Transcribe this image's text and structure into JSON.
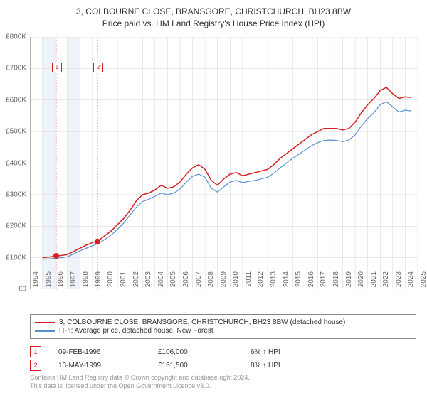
{
  "title_line1": "3, COLBOURNE CLOSE, BRANSGORE, CHRISTCHURCH, BH23 8BW",
  "title_line2": "Price paid vs. HM Land Registry's House Price Index (HPI)",
  "chart": {
    "type": "line",
    "background_color": "#ffffff",
    "grid_color": "#d5d5d5",
    "axis_color": "#666666",
    "ylim": [
      0,
      800000
    ],
    "ytick_step": 100000,
    "ytick_labels": [
      "£0",
      "£100K",
      "£200K",
      "£300K",
      "£400K",
      "£500K",
      "£600K",
      "£700K",
      "£800K"
    ],
    "xlim": [
      1994,
      2025
    ],
    "xtick_step": 1,
    "xtick_labels": [
      "1994",
      "1995",
      "1996",
      "1997",
      "1998",
      "1999",
      "2000",
      "2001",
      "2002",
      "2003",
      "2004",
      "2005",
      "2006",
      "2007",
      "2008",
      "2009",
      "2010",
      "2011",
      "2012",
      "2013",
      "2014",
      "2015",
      "2016",
      "2017",
      "2018",
      "2019",
      "2020",
      "2021",
      "2022",
      "2023",
      "2024",
      "2025"
    ],
    "vband_color": "#eef3f9",
    "vband_years": [
      [
        1995,
        1996
      ],
      [
        1997,
        1998
      ]
    ],
    "callout_line_color": "#e05a5a",
    "series": [
      {
        "name": "price_paid",
        "color": "#d42020",
        "width": 1.5,
        "points": [
          [
            1995,
            100000
          ],
          [
            1995.5,
            102000
          ],
          [
            1996,
            105000
          ],
          [
            1996.5,
            107000
          ],
          [
            1997,
            110000
          ],
          [
            1997.5,
            120000
          ],
          [
            1998,
            130000
          ],
          [
            1998.5,
            140000
          ],
          [
            1999,
            148000
          ],
          [
            1999.5,
            155000
          ],
          [
            2000,
            170000
          ],
          [
            2000.5,
            185000
          ],
          [
            2001,
            205000
          ],
          [
            2001.5,
            225000
          ],
          [
            2002,
            250000
          ],
          [
            2002.5,
            280000
          ],
          [
            2003,
            300000
          ],
          [
            2003.5,
            305000
          ],
          [
            2004,
            315000
          ],
          [
            2004.5,
            330000
          ],
          [
            2005,
            320000
          ],
          [
            2005.5,
            325000
          ],
          [
            2006,
            340000
          ],
          [
            2006.5,
            365000
          ],
          [
            2007,
            385000
          ],
          [
            2007.5,
            395000
          ],
          [
            2008,
            380000
          ],
          [
            2008.5,
            345000
          ],
          [
            2009,
            330000
          ],
          [
            2009.5,
            350000
          ],
          [
            2010,
            365000
          ],
          [
            2010.5,
            370000
          ],
          [
            2011,
            360000
          ],
          [
            2011.5,
            365000
          ],
          [
            2012,
            370000
          ],
          [
            2012.5,
            375000
          ],
          [
            2013,
            380000
          ],
          [
            2013.5,
            395000
          ],
          [
            2014,
            415000
          ],
          [
            2014.5,
            430000
          ],
          [
            2015,
            445000
          ],
          [
            2015.5,
            460000
          ],
          [
            2016,
            475000
          ],
          [
            2016.5,
            490000
          ],
          [
            2017,
            500000
          ],
          [
            2017.5,
            510000
          ],
          [
            2018,
            510000
          ],
          [
            2018.5,
            510000
          ],
          [
            2019,
            505000
          ],
          [
            2019.5,
            510000
          ],
          [
            2020,
            530000
          ],
          [
            2020.5,
            560000
          ],
          [
            2021,
            585000
          ],
          [
            2021.5,
            605000
          ],
          [
            2022,
            630000
          ],
          [
            2022.5,
            640000
          ],
          [
            2023,
            620000
          ],
          [
            2023.5,
            605000
          ],
          [
            2024,
            610000
          ],
          [
            2024.5,
            608000
          ]
        ]
      },
      {
        "name": "hpi",
        "color": "#5a8fd4",
        "width": 1.2,
        "points": [
          [
            1995,
            95000
          ],
          [
            1995.5,
            96000
          ],
          [
            1996,
            98000
          ],
          [
            1996.5,
            100000
          ],
          [
            1997,
            103000
          ],
          [
            1997.5,
            112000
          ],
          [
            1998,
            122000
          ],
          [
            1998.5,
            130000
          ],
          [
            1999,
            138000
          ],
          [
            1999.5,
            146000
          ],
          [
            2000,
            158000
          ],
          [
            2000.5,
            172000
          ],
          [
            2001,
            190000
          ],
          [
            2001.5,
            210000
          ],
          [
            2002,
            235000
          ],
          [
            2002.5,
            260000
          ],
          [
            2003,
            278000
          ],
          [
            2003.5,
            285000
          ],
          [
            2004,
            295000
          ],
          [
            2004.5,
            305000
          ],
          [
            2005,
            300000
          ],
          [
            2005.5,
            305000
          ],
          [
            2006,
            318000
          ],
          [
            2006.5,
            340000
          ],
          [
            2007,
            358000
          ],
          [
            2007.5,
            365000
          ],
          [
            2008,
            355000
          ],
          [
            2008.5,
            320000
          ],
          [
            2009,
            308000
          ],
          [
            2009.5,
            325000
          ],
          [
            2010,
            340000
          ],
          [
            2010.5,
            345000
          ],
          [
            2011,
            338000
          ],
          [
            2011.5,
            342000
          ],
          [
            2012,
            345000
          ],
          [
            2012.5,
            350000
          ],
          [
            2013,
            355000
          ],
          [
            2013.5,
            368000
          ],
          [
            2014,
            385000
          ],
          [
            2014.5,
            400000
          ],
          [
            2015,
            415000
          ],
          [
            2015.5,
            428000
          ],
          [
            2016,
            442000
          ],
          [
            2016.5,
            455000
          ],
          [
            2017,
            465000
          ],
          [
            2017.5,
            472000
          ],
          [
            2018,
            473000
          ],
          [
            2018.5,
            472000
          ],
          [
            2019,
            468000
          ],
          [
            2019.5,
            473000
          ],
          [
            2020,
            490000
          ],
          [
            2020.5,
            518000
          ],
          [
            2021,
            542000
          ],
          [
            2021.5,
            560000
          ],
          [
            2022,
            585000
          ],
          [
            2022.5,
            595000
          ],
          [
            2023,
            578000
          ],
          [
            2023.5,
            562000
          ],
          [
            2024,
            568000
          ],
          [
            2024.5,
            565000
          ]
        ]
      }
    ],
    "sale_markers": [
      {
        "id": "1",
        "year": 1996.1,
        "price": 106000
      },
      {
        "id": "2",
        "year": 1999.4,
        "price": 151500
      }
    ],
    "marker_color": "#d42020"
  },
  "legend": {
    "items": [
      {
        "color": "#d42020",
        "label": "3, COLBOURNE CLOSE, BRANSGORE, CHRISTCHURCH, BH23 8BW (detached house)"
      },
      {
        "color": "#5a8fd4",
        "label": "HPI: Average price, detached house, New Forest"
      }
    ]
  },
  "marker_rows": [
    {
      "id": "1",
      "date": "09-FEB-1996",
      "price": "£106,000",
      "pct": "6% ↑ HPI"
    },
    {
      "id": "2",
      "date": "13-MAY-1999",
      "price": "£151,500",
      "pct": "8% ↑ HPI"
    }
  ],
  "attribution_line1": "Contains HM Land Registry data © Crown copyright and database right 2024.",
  "attribution_line2": "This data is licensed under the Open Government Licence v3.0."
}
